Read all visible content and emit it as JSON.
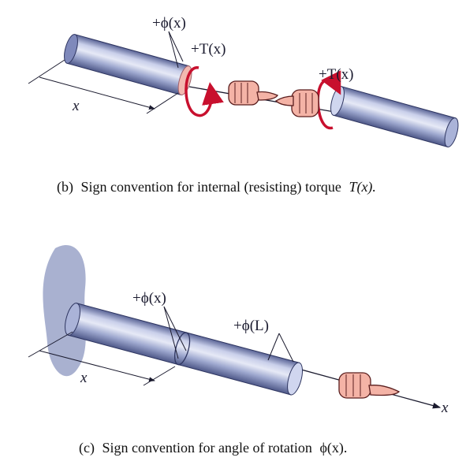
{
  "panel_b": {
    "label_phi": "+ϕ(x)",
    "label_torque_left": "+T(x)",
    "label_torque_right": "+T(x)",
    "label_x": "x",
    "caption_prefix": "(b)",
    "caption_text": "Sign convention for internal (resisting) torque",
    "caption_symbol": "T(x).",
    "cross_section_color": "#f2b8b0",
    "arrow_color": "#c8102e"
  },
  "panel_c": {
    "label_phi_x": "+ϕ(x)",
    "label_phi_L": "+ϕ(L)",
    "label_x_dim": "x",
    "label_x_axis": "x",
    "caption_prefix": "(c)",
    "caption_text": "Sign convention for angle of rotation",
    "caption_symbol": "ϕ(x).",
    "wall_color": "#9aa3c8"
  },
  "colors": {
    "shaft_light": "#dfe4f4",
    "shaft_mid": "#9ea8cf",
    "shaft_dark": "#5a6496",
    "hand": "#f4b3a6"
  }
}
